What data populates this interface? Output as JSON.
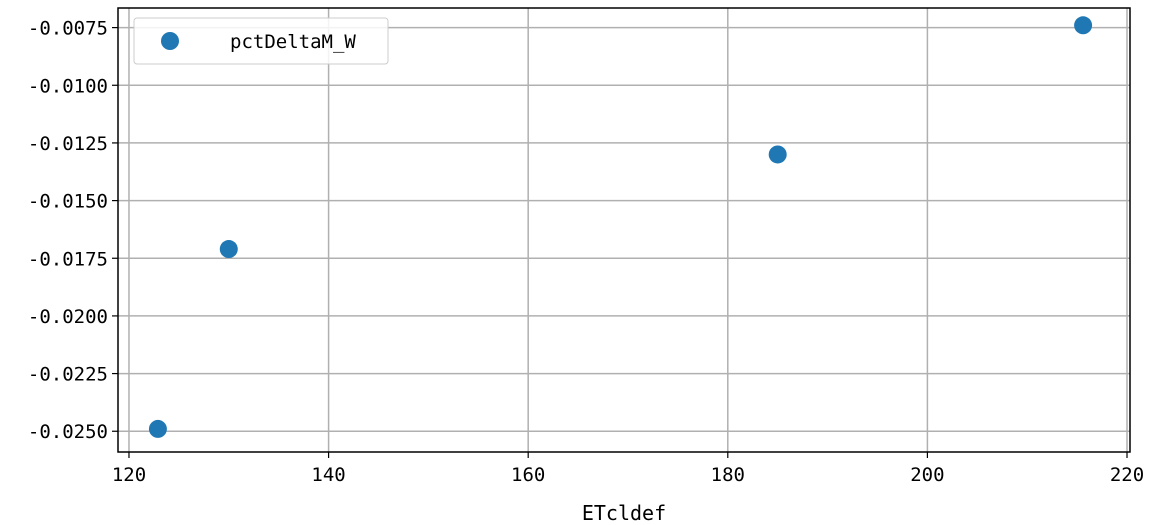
{
  "chart_data": {
    "type": "scatter",
    "title": "",
    "xlabel": "ETcldef",
    "ylabel": "",
    "xlim": [
      118.9,
      220.3
    ],
    "ylim": [
      -0.0259,
      -0.00665
    ],
    "xticks": [
      120,
      140,
      160,
      180,
      200,
      220
    ],
    "yticks": [
      -0.0075,
      -0.01,
      -0.0125,
      -0.015,
      -0.0175,
      -0.02,
      -0.0225,
      -0.025
    ],
    "xtick_labels": [
      "120",
      "140",
      "160",
      "180",
      "200",
      "220"
    ],
    "ytick_labels": [
      "-0.0075",
      "-0.0100",
      "-0.0125",
      "-0.0150",
      "-0.0175",
      "-0.0200",
      "-0.0225",
      "-0.0250"
    ],
    "grid": true,
    "legend_position": "top-left",
    "series": [
      {
        "name": "pctDeltaM_W",
        "color": "#1f77b4",
        "x": [
          122.9,
          130.0,
          185.0,
          215.6
        ],
        "y": [
          -0.0249,
          -0.0171,
          -0.013,
          -0.0074
        ]
      }
    ]
  }
}
